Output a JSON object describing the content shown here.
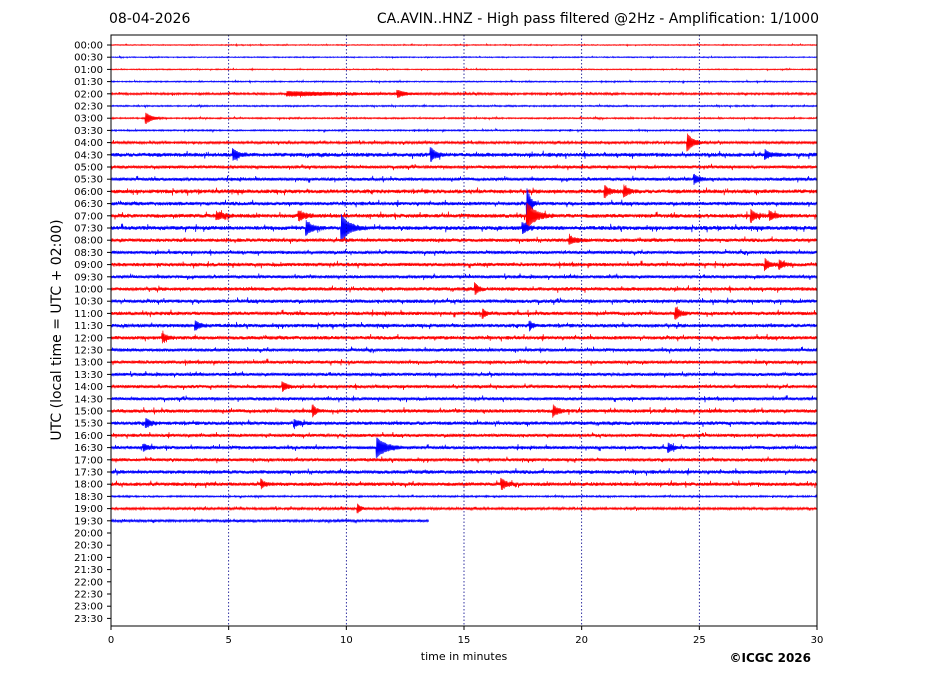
{
  "header": {
    "date": "08-04-2026",
    "title": "CA.AVIN..HNZ - High pass filtered @2Hz - Amplification: 1/1000"
  },
  "footer": {
    "copyright": "©ICGC 2026"
  },
  "chart_data": {
    "type": "line",
    "title": "CA.AVIN..HNZ - High pass filtered @2Hz - Amplification: 1/1000",
    "xlabel": "time in minutes",
    "ylabel": "UTC (local time = UTC + 02:00)",
    "xlim": [
      0,
      30
    ],
    "xticks": [
      0,
      5,
      10,
      15,
      20,
      25,
      30
    ],
    "grid": "vertical dotted at x = 5, 10, 15, 20, 25",
    "colors": {
      "even_rows": "#ff0000",
      "odd_rows": "#0000ff",
      "grid": "#00008b"
    },
    "rows": [
      "00:00",
      "00:30",
      "01:00",
      "01:30",
      "02:00",
      "02:30",
      "03:00",
      "03:30",
      "04:00",
      "04:30",
      "05:00",
      "05:30",
      "06:00",
      "06:30",
      "07:00",
      "07:30",
      "08:00",
      "08:30",
      "09:00",
      "09:30",
      "10:00",
      "10:30",
      "11:00",
      "11:30",
      "12:00",
      "12:30",
      "13:00",
      "13:30",
      "14:00",
      "14:30",
      "15:00",
      "15:30",
      "16:00",
      "16:30",
      "17:00",
      "17:30",
      "18:00",
      "18:30",
      "19:00",
      "19:30",
      "20:00",
      "20:30",
      "21:00",
      "21:30",
      "22:00",
      "22:30",
      "23:00",
      "23:30"
    ],
    "noise_level": [
      0.5,
      0.5,
      0.5,
      0.6,
      1,
      0.7,
      0.7,
      0.7,
      1.2,
      2,
      1.5,
      1.6,
      2,
      1.8,
      2,
      2,
      1.8,
      1.6,
      1.8,
      1.6,
      1.8,
      1.8,
      1.8,
      1.8,
      1.8,
      1.6,
      1.6,
      1.6,
      1.6,
      1.6,
      1.8,
      1.8,
      1.6,
      1.6,
      1.6,
      1.8,
      1.8,
      0.8,
      1.2,
      1.2,
      0.4,
      0.3,
      0.3,
      0.3,
      0.3,
      0.3,
      0.3,
      0.3
    ],
    "data_end_min": [
      30,
      30,
      30,
      30,
      30,
      30,
      30,
      30,
      30,
      30,
      30,
      30,
      30,
      30,
      30,
      30,
      30,
      30,
      30,
      30,
      30,
      30,
      30,
      30,
      30,
      30,
      30,
      30,
      30,
      30,
      30,
      30,
      30,
      30,
      30,
      30,
      30,
      30,
      30,
      13.5,
      0,
      0,
      0,
      0,
      0,
      0,
      0,
      0
    ],
    "events": [
      {
        "row": "02:00",
        "minute": 7.5,
        "amplitude": 2,
        "duration": 4
      },
      {
        "row": "02:00",
        "minute": 12.2,
        "amplitude": 3,
        "duration": 0.4
      },
      {
        "row": "03:00",
        "minute": 1.5,
        "amplitude": 5,
        "duration": 0.4
      },
      {
        "row": "04:00",
        "minute": 24.5,
        "amplitude": 8,
        "duration": 0.4
      },
      {
        "row": "04:30",
        "minute": 5.2,
        "amplitude": 5,
        "duration": 0.3
      },
      {
        "row": "04:30",
        "minute": 13.6,
        "amplitude": 6,
        "duration": 0.3
      },
      {
        "row": "04:30",
        "minute": 27.8,
        "amplitude": 4,
        "duration": 0.3
      },
      {
        "row": "05:30",
        "minute": 24.8,
        "amplitude": 4,
        "duration": 0.3
      },
      {
        "row": "06:00",
        "minute": 21.0,
        "amplitude": 5,
        "duration": 0.3
      },
      {
        "row": "06:00",
        "minute": 21.8,
        "amplitude": 5,
        "duration": 0.3
      },
      {
        "row": "06:30",
        "minute": 17.7,
        "amplitude": 14,
        "duration": 0.2
      },
      {
        "row": "07:00",
        "minute": 4.5,
        "amplitude": 3,
        "duration": 0.5
      },
      {
        "row": "07:00",
        "minute": 8.0,
        "amplitude": 4,
        "duration": 0.4
      },
      {
        "row": "07:00",
        "minute": 17.7,
        "amplitude": 12,
        "duration": 0.5
      },
      {
        "row": "07:00",
        "minute": 27.2,
        "amplitude": 5,
        "duration": 0.3
      },
      {
        "row": "07:00",
        "minute": 28.0,
        "amplitude": 4,
        "duration": 0.3
      },
      {
        "row": "07:30",
        "minute": 8.3,
        "amplitude": 6,
        "duration": 0.4
      },
      {
        "row": "07:30",
        "minute": 9.8,
        "amplitude": 12,
        "duration": 0.5
      },
      {
        "row": "07:30",
        "minute": 17.5,
        "amplitude": 5,
        "duration": 0.3
      },
      {
        "row": "08:00",
        "minute": 19.5,
        "amplitude": 3,
        "duration": 0.5
      },
      {
        "row": "09:00",
        "minute": 27.8,
        "amplitude": 5,
        "duration": 0.3
      },
      {
        "row": "09:00",
        "minute": 28.4,
        "amplitude": 4,
        "duration": 0.3
      },
      {
        "row": "10:00",
        "minute": 15.5,
        "amplitude": 5,
        "duration": 0.2
      },
      {
        "row": "11:00",
        "minute": 24.0,
        "amplitude": 5,
        "duration": 0.3
      },
      {
        "row": "11:00",
        "minute": 15.8,
        "amplitude": 4,
        "duration": 0.2
      },
      {
        "row": "11:30",
        "minute": 3.6,
        "amplitude": 4,
        "duration": 0.3
      },
      {
        "row": "11:30",
        "minute": 17.8,
        "amplitude": 4,
        "duration": 0.2
      },
      {
        "row": "12:00",
        "minute": 2.2,
        "amplitude": 4,
        "duration": 0.3
      },
      {
        "row": "14:00",
        "minute": 7.3,
        "amplitude": 4,
        "duration": 0.3
      },
      {
        "row": "15:00",
        "minute": 18.8,
        "amplitude": 5,
        "duration": 0.3
      },
      {
        "row": "15:00",
        "minute": 8.6,
        "amplitude": 5,
        "duration": 0.2
      },
      {
        "row": "15:30",
        "minute": 1.5,
        "amplitude": 4,
        "duration": 0.3
      },
      {
        "row": "15:30",
        "minute": 7.8,
        "amplitude": 3,
        "duration": 0.3
      },
      {
        "row": "16:30",
        "minute": 11.3,
        "amplitude": 9,
        "duration": 0.6
      },
      {
        "row": "16:30",
        "minute": 23.7,
        "amplitude": 4,
        "duration": 0.3
      },
      {
        "row": "16:30",
        "minute": 1.4,
        "amplitude": 3,
        "duration": 0.3
      },
      {
        "row": "18:00",
        "minute": 16.6,
        "amplitude": 5,
        "duration": 0.3
      },
      {
        "row": "18:00",
        "minute": 6.4,
        "amplitude": 4,
        "duration": 0.2
      },
      {
        "row": "19:00",
        "minute": 10.5,
        "amplitude": 4,
        "duration": 0.2
      }
    ]
  }
}
